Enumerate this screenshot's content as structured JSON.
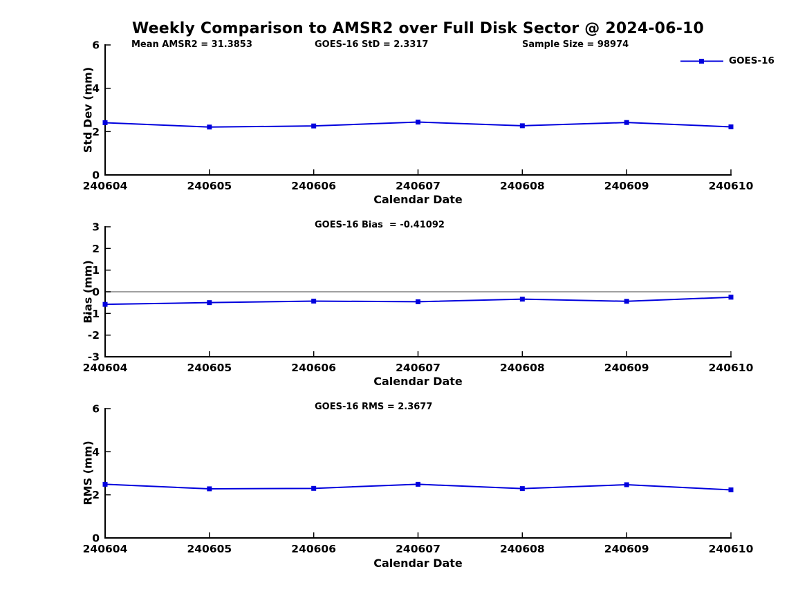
{
  "page": {
    "title": "Weekly Comparison to AMSR2 over Full Disk Sector @ 2024-06-10"
  },
  "colors": {
    "line": "#0000dd",
    "axis": "#000000",
    "zero_line": "#808080",
    "text": "#000000",
    "background": "#ffffff"
  },
  "legend": {
    "label": "GOES-16",
    "position": "top-right"
  },
  "chart_data": [
    {
      "id": "stddev",
      "type": "line",
      "ylabel": "Std Dev (mm)",
      "xlabel": "Calendar Date",
      "categories": [
        "240604",
        "240605",
        "240606",
        "240607",
        "240608",
        "240609",
        "240610"
      ],
      "series": [
        {
          "name": "GOES-16",
          "marker": "square",
          "values": [
            2.41,
            2.21,
            2.26,
            2.44,
            2.27,
            2.42,
            2.22
          ]
        }
      ],
      "ylim": [
        0,
        6
      ],
      "yticks": [
        0,
        2,
        4,
        6
      ],
      "grid": false,
      "zero_line": false,
      "legend_position": "top-right",
      "annotations": [
        {
          "text": "Mean AMSR2 = 31.3853"
        },
        {
          "text": "GOES-16 StD = 2.3317"
        },
        {
          "text": "Sample Size = 98974"
        }
      ]
    },
    {
      "id": "bias",
      "type": "line",
      "ylabel": "Bias (mm)",
      "xlabel": "Calendar Date",
      "categories": [
        "240604",
        "240605",
        "240606",
        "240607",
        "240608",
        "240609",
        "240610"
      ],
      "series": [
        {
          "name": "GOES-16",
          "marker": "square",
          "values": [
            -0.58,
            -0.5,
            -0.43,
            -0.46,
            -0.34,
            -0.44,
            -0.25
          ]
        }
      ],
      "ylim": [
        -3,
        3
      ],
      "yticks": [
        -3,
        -2,
        -1,
        0,
        1,
        2,
        3
      ],
      "grid": false,
      "zero_line": true,
      "annotations": [
        {
          "text": "GOES-16 Bias  = -0.41092"
        }
      ]
    },
    {
      "id": "rms",
      "type": "line",
      "ylabel": "RMS (mm)",
      "xlabel": "Calendar Date",
      "categories": [
        "240604",
        "240605",
        "240606",
        "240607",
        "240608",
        "240609",
        "240610"
      ],
      "series": [
        {
          "name": "GOES-16",
          "marker": "square",
          "values": [
            2.49,
            2.28,
            2.3,
            2.49,
            2.29,
            2.47,
            2.23
          ]
        }
      ],
      "ylim": [
        0,
        6
      ],
      "yticks": [
        0,
        2,
        4,
        6
      ],
      "grid": false,
      "zero_line": false,
      "annotations": [
        {
          "text": "GOES-16 RMS = 2.3677"
        }
      ]
    }
  ]
}
